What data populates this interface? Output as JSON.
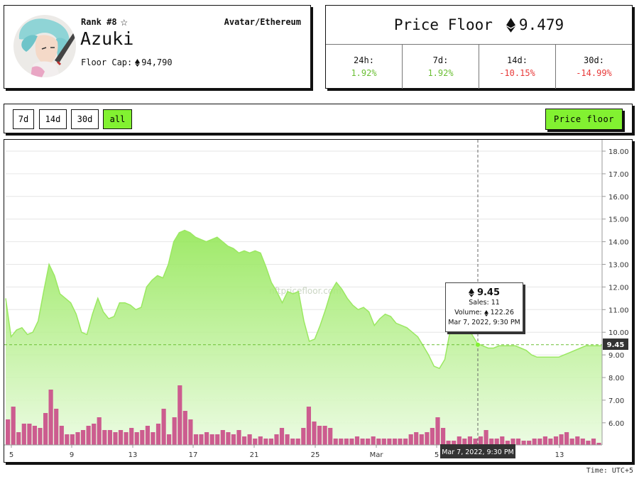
{
  "collection": {
    "rank": "Rank #8",
    "name": "Azuki",
    "category": "Avatar/Ethereum",
    "floor_cap_label": "Floor Cap:",
    "floor_cap_value": "94,790"
  },
  "price_floor": {
    "label": "Price Floor",
    "value": "9.479",
    "stats": [
      {
        "label": "24h:",
        "value": "1.92%",
        "trend": "pos"
      },
      {
        "label": "7d:",
        "value": "1.92%",
        "trend": "pos"
      },
      {
        "label": "14d:",
        "value": "-10.15%",
        "trend": "neg"
      },
      {
        "label": "30d:",
        "value": "-14.99%",
        "trend": "neg"
      }
    ]
  },
  "toolbar": {
    "ranges": [
      {
        "label": "7d",
        "active": false
      },
      {
        "label": "14d",
        "active": false
      },
      {
        "label": "30d",
        "active": false
      },
      {
        "label": "all",
        "active": true
      }
    ],
    "price_floor_button": "Price floor"
  },
  "colors": {
    "accent": "#82f131",
    "line": "#9be862",
    "volume": "#cc5c8f",
    "positive": "#6bbf34",
    "negative": "#e83a3a"
  },
  "chart_data": {
    "type": "area",
    "watermark": "nftpricefloor.com",
    "y_ticks": [
      "18.00",
      "17.00",
      "16.00",
      "15.00",
      "14.00",
      "13.00",
      "12.00",
      "11.00",
      "10.00",
      "9.00",
      "8.00",
      "7.00",
      "6.00"
    ],
    "y_range": [
      5.0,
      18.5
    ],
    "x_ticks": [
      "5",
      "9",
      "13",
      "17",
      "21",
      "25",
      "Mar",
      "5",
      "13"
    ],
    "current_price_label": "9.45",
    "crosshair_x_label": "Mar 7, 2022, 9:30 PM",
    "floor_prices": [
      11.5,
      9.8,
      10.1,
      10.2,
      9.9,
      10.0,
      10.5,
      11.8,
      13.0,
      12.5,
      11.7,
      11.5,
      11.3,
      10.8,
      10.0,
      9.9,
      10.8,
      11.5,
      10.9,
      10.6,
      10.7,
      11.3,
      11.3,
      11.2,
      11.0,
      11.1,
      12.0,
      12.3,
      12.5,
      12.4,
      13.0,
      14.0,
      14.4,
      14.5,
      14.4,
      14.2,
      14.1,
      14.0,
      14.1,
      14.2,
      14.0,
      13.8,
      13.7,
      13.5,
      13.6,
      13.5,
      13.6,
      13.5,
      12.9,
      12.2,
      11.8,
      11.3,
      11.8,
      11.7,
      11.8,
      10.5,
      9.6,
      9.7,
      10.3,
      11.0,
      11.8,
      12.2,
      11.9,
      11.5,
      11.2,
      11.0,
      11.1,
      10.9,
      10.3,
      10.6,
      10.8,
      10.7,
      10.4,
      10.3,
      10.2,
      10.0,
      9.8,
      9.4,
      9.0,
      8.5,
      8.4,
      8.8,
      10.1,
      10.3,
      10.3,
      10.2,
      9.9,
      9.5,
      9.4,
      9.3,
      9.3,
      9.4,
      9.4,
      9.4,
      9.4,
      9.3,
      9.2,
      9.0,
      8.9,
      8.9,
      8.9,
      8.9,
      8.9,
      9.0,
      9.1,
      9.2,
      9.3,
      9.4,
      9.4,
      9.4,
      9.4
    ],
    "volumes": [
      1.2,
      1.8,
      0.6,
      1.0,
      1.0,
      0.9,
      0.8,
      1.5,
      2.6,
      1.7,
      0.9,
      0.5,
      0.5,
      0.6,
      0.7,
      0.9,
      1.0,
      1.3,
      0.7,
      0.7,
      0.6,
      0.7,
      0.6,
      0.8,
      0.6,
      0.7,
      0.9,
      0.6,
      1.0,
      1.7,
      0.5,
      1.3,
      2.8,
      1.6,
      1.2,
      0.5,
      0.5,
      0.6,
      0.5,
      0.5,
      0.7,
      0.6,
      0.5,
      0.7,
      0.4,
      0.5,
      0.3,
      0.4,
      0.3,
      0.3,
      0.5,
      0.8,
      0.5,
      0.3,
      0.3,
      0.8,
      1.8,
      1.1,
      0.9,
      0.9,
      0.8,
      0.3,
      0.3,
      0.3,
      0.3,
      0.4,
      0.3,
      0.3,
      0.4,
      0.3,
      0.3,
      0.3,
      0.3,
      0.3,
      0.3,
      0.5,
      0.6,
      0.5,
      0.6,
      0.8,
      1.3,
      0.8,
      0.2,
      0.2,
      0.4,
      0.3,
      0.4,
      0.3,
      0.4,
      0.7,
      0.3,
      0.3,
      0.4,
      0.2,
      0.3,
      0.3,
      0.2,
      0.2,
      0.3,
      0.3,
      0.4,
      0.3,
      0.4,
      0.5,
      0.6,
      0.3,
      0.4,
      0.3,
      0.2,
      0.3,
      0.1
    ],
    "tooltip": {
      "price": "9.45",
      "sales": "Sales: 11",
      "volume_label": "Volume:",
      "volume_value": "122.26",
      "date": "Mar 7, 2022, 9:30 PM"
    }
  },
  "footer": {
    "timezone": "Time: UTC+5"
  }
}
